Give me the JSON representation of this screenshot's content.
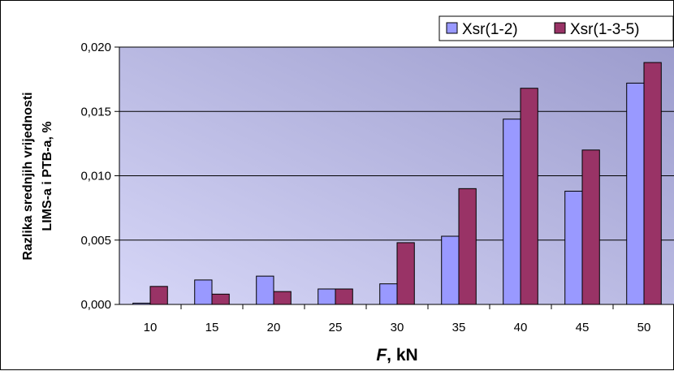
{
  "chart_data": {
    "type": "bar",
    "categories": [
      "10",
      "15",
      "20",
      "25",
      "30",
      "35",
      "40",
      "45",
      "50"
    ],
    "series": [
      {
        "name": "Xsr(1-2)",
        "color": "#9999ff",
        "values": [
          0.0001,
          0.0019,
          0.0022,
          0.0012,
          0.0016,
          0.0053,
          0.0144,
          0.0088,
          0.0172
        ]
      },
      {
        "name": "Xsr(1-3-5)",
        "color": "#993366",
        "values": [
          0.0014,
          0.0008,
          0.001,
          0.0012,
          0.0048,
          0.009,
          0.0168,
          0.012,
          0.0188
        ]
      }
    ],
    "ylim": [
      0,
      0.02
    ],
    "yticks": [
      "0,000",
      "0,005",
      "0,010",
      "0,015",
      "0,020"
    ],
    "ytick_values": [
      0,
      0.005,
      0.01,
      0.015,
      0.02
    ],
    "ylabel_line1": "Razlika srednjih vrijednosti",
    "ylabel_line2": "LIMS-a i PTB-a,  %",
    "xlabel_italic": "F",
    "xlabel_rest": ",  kN",
    "grid": true,
    "legend_position": "top-right",
    "plot_background": [
      "#d6d6f7",
      "#9c9ccd"
    ]
  }
}
